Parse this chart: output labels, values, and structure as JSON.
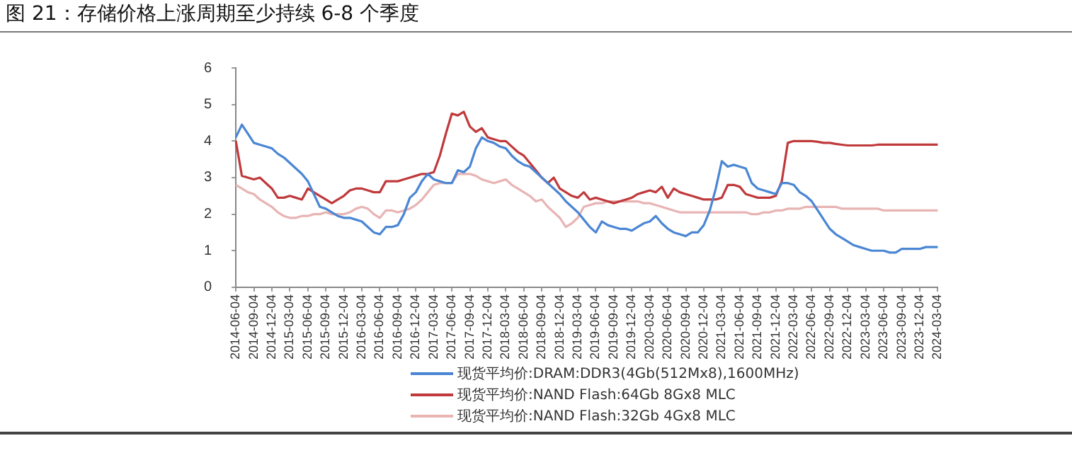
{
  "chart_data": {
    "type": "line",
    "title": "图 21：存储价格上涨周期至少持续 6-8 个季度",
    "categories": [
      "2014-06-04",
      null,
      null,
      "2014-09-04",
      null,
      null,
      "2014-12-04",
      null,
      null,
      "2015-03-04",
      null,
      null,
      "2015-06-04",
      null,
      null,
      "2015-09-04",
      null,
      null,
      "2015-12-04",
      null,
      null,
      "2016-03-04",
      null,
      null,
      "2016-06-04",
      null,
      null,
      "2016-09-04",
      null,
      null,
      "2016-12-04",
      null,
      null,
      "2017-03-04",
      null,
      null,
      "2017-06-04",
      null,
      null,
      "2017-09-04",
      null,
      null,
      "2017-12-04",
      null,
      null,
      "2018-03-04",
      null,
      null,
      "2018-06-04",
      null,
      null,
      "2018-09-04",
      null,
      null,
      "2018-12-04",
      null,
      null,
      "2019-03-04",
      null,
      null,
      "2019-06-04",
      null,
      null,
      "2019-09-04",
      null,
      null,
      "2019-12-04",
      null,
      null,
      "2020-03-04",
      null,
      null,
      "2020-06-04",
      null,
      null,
      "2020-09-04",
      null,
      null,
      "2020-12-04",
      null,
      null,
      "2021-03-04",
      null,
      null,
      "2021-06-04",
      null,
      null,
      "2021-09-04",
      null,
      null,
      "2021-12-04",
      null,
      null,
      "2022-03-04",
      null,
      null,
      "2022-06-04",
      null,
      null,
      "2022-09-04",
      null,
      null,
      "2022-12-04",
      null,
      null,
      "2023-03-04",
      null,
      null,
      "2023-06-04",
      null,
      null,
      "2023-09-04",
      null,
      null,
      "2023-12-04",
      null,
      null,
      "2024-03-04"
    ],
    "series": [
      {
        "name": "现货平均价:DRAM:DDR3(4Gb(512Mx8),1600MHz)",
        "color": "#4a86d4",
        "values": [
          4.1,
          4.45,
          4.2,
          3.95,
          3.9,
          3.85,
          3.8,
          3.65,
          3.55,
          3.4,
          3.25,
          3.1,
          2.9,
          2.55,
          2.2,
          2.15,
          2.05,
          1.95,
          1.9,
          1.9,
          1.85,
          1.8,
          1.65,
          1.5,
          1.45,
          1.65,
          1.65,
          1.7,
          2.0,
          2.45,
          2.6,
          2.9,
          3.1,
          2.95,
          2.9,
          2.85,
          2.85,
          3.2,
          3.15,
          3.3,
          3.8,
          4.1,
          4.0,
          3.95,
          3.85,
          3.8,
          3.6,
          3.45,
          3.35,
          3.3,
          3.15,
          3.0,
          2.85,
          2.7,
          2.55,
          2.35,
          2.2,
          2.05,
          1.85,
          1.65,
          1.5,
          1.8,
          1.7,
          1.65,
          1.6,
          1.6,
          1.55,
          1.65,
          1.75,
          1.8,
          1.95,
          1.75,
          1.6,
          1.5,
          1.45,
          1.4,
          1.5,
          1.5,
          1.7,
          2.1,
          2.7,
          3.45,
          3.3,
          3.35,
          3.3,
          3.25,
          2.85,
          2.7,
          2.65,
          2.6,
          2.55,
          2.85,
          2.85,
          2.8,
          2.6,
          2.5,
          2.35,
          2.1,
          1.85,
          1.6,
          1.45,
          1.35,
          1.25,
          1.15,
          1.1,
          1.05,
          1.0,
          1.0,
          1.0,
          0.95,
          0.95,
          1.05,
          1.05,
          1.05,
          1.05,
          1.1,
          1.1,
          1.1
        ]
      },
      {
        "name": "现货平均价:NAND Flash:64Gb 8Gx8 MLC",
        "color": "#c0393b",
        "values": [
          4.0,
          3.05,
          3.0,
          2.95,
          3.0,
          2.85,
          2.7,
          2.45,
          2.45,
          2.5,
          2.45,
          2.4,
          2.7,
          2.6,
          2.5,
          2.4,
          2.3,
          2.4,
          2.5,
          2.65,
          2.7,
          2.7,
          2.65,
          2.6,
          2.6,
          2.9,
          2.9,
          2.9,
          2.95,
          3.0,
          3.05,
          3.1,
          3.1,
          3.15,
          3.6,
          4.2,
          4.75,
          4.7,
          4.8,
          4.4,
          4.25,
          4.35,
          4.1,
          4.05,
          4.0,
          4.0,
          3.85,
          3.7,
          3.6,
          3.4,
          3.2,
          3.0,
          2.85,
          3.0,
          2.7,
          2.6,
          2.5,
          2.45,
          2.6,
          2.4,
          2.45,
          2.4,
          2.35,
          2.3,
          2.35,
          2.4,
          2.45,
          2.55,
          2.6,
          2.65,
          2.6,
          2.75,
          2.45,
          2.7,
          2.6,
          2.55,
          2.5,
          2.45,
          2.4,
          2.4,
          2.4,
          2.45,
          2.8,
          2.8,
          2.75,
          2.55,
          2.5,
          2.45,
          2.45,
          2.45,
          2.5,
          2.9,
          3.95,
          4.0,
          4.0,
          4.0,
          4.0,
          3.98,
          3.95,
          3.95,
          3.92,
          3.9,
          3.88,
          3.88,
          3.88,
          3.88,
          3.88,
          3.9,
          3.9,
          3.9,
          3.9,
          3.9,
          3.9,
          3.9,
          3.9,
          3.9,
          3.9,
          3.9
        ]
      },
      {
        "name": "现货平均价:NAND Flash:32Gb 4Gx8 MLC",
        "color": "#e8b4b4",
        "values": [
          2.8,
          2.7,
          2.6,
          2.55,
          2.4,
          2.3,
          2.2,
          2.05,
          1.95,
          1.9,
          1.9,
          1.95,
          1.95,
          2.0,
          2.0,
          2.05,
          2.0,
          2.0,
          2.0,
          2.05,
          2.15,
          2.2,
          2.15,
          2.0,
          1.9,
          2.1,
          2.1,
          2.05,
          2.1,
          2.15,
          2.25,
          2.4,
          2.6,
          2.8,
          2.85,
          2.85,
          2.85,
          3.1,
          3.1,
          3.1,
          3.05,
          2.95,
          2.9,
          2.85,
          2.9,
          2.95,
          2.8,
          2.7,
          2.6,
          2.5,
          2.35,
          2.4,
          2.2,
          2.05,
          1.9,
          1.65,
          1.75,
          1.9,
          2.2,
          2.25,
          2.3,
          2.3,
          2.35,
          2.35,
          2.35,
          2.35,
          2.35,
          2.35,
          2.3,
          2.3,
          2.25,
          2.2,
          2.15,
          2.1,
          2.05,
          2.05,
          2.05,
          2.05,
          2.05,
          2.05,
          2.05,
          2.05,
          2.05,
          2.05,
          2.05,
          2.05,
          2.0,
          2.0,
          2.05,
          2.05,
          2.1,
          2.1,
          2.15,
          2.15,
          2.15,
          2.2,
          2.2,
          2.2,
          2.2,
          2.2,
          2.2,
          2.15,
          2.15,
          2.15,
          2.15,
          2.15,
          2.15,
          2.15,
          2.1,
          2.1,
          2.1,
          2.1,
          2.1,
          2.1,
          2.1,
          2.1,
          2.1,
          2.1
        ]
      }
    ],
    "ylim": [
      0,
      6
    ],
    "yticks": [
      0,
      1,
      2,
      3,
      4,
      5,
      6
    ],
    "legend": "bottom",
    "grid": false,
    "marker": "none",
    "line_style": "solid"
  }
}
